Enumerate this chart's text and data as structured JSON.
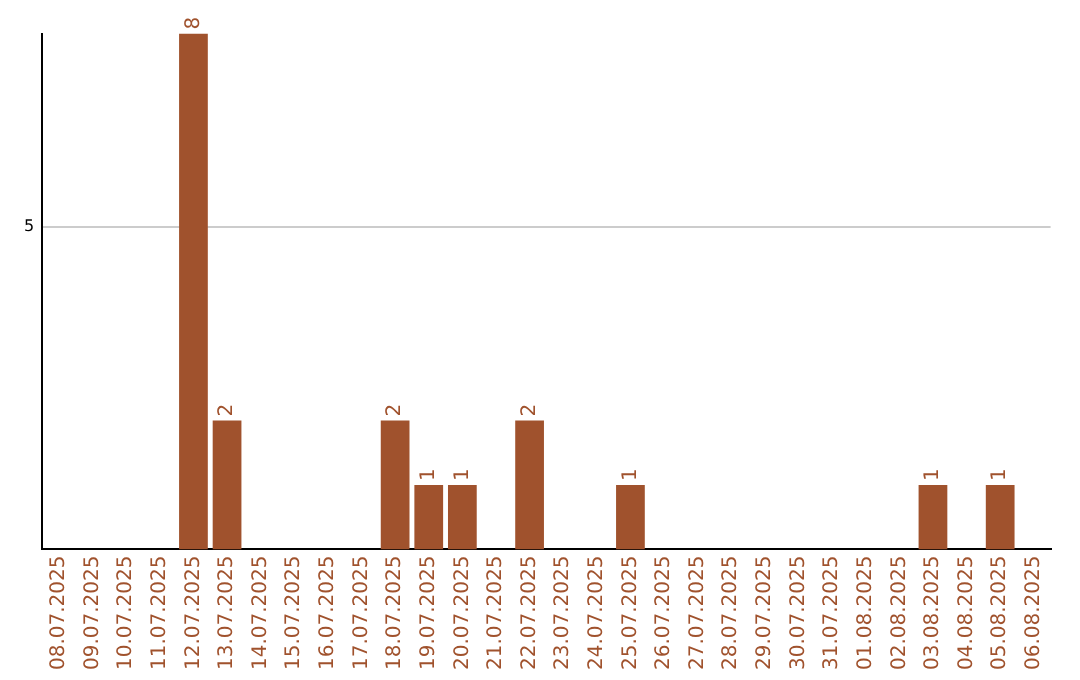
{
  "chart_data": {
    "type": "bar",
    "categories": [
      "08.07.2025",
      "09.07.2025",
      "10.07.2025",
      "11.07.2025",
      "12.07.2025",
      "13.07.2025",
      "14.07.2025",
      "15.07.2025",
      "16.07.2025",
      "17.07.2025",
      "18.07.2025",
      "19.07.2025",
      "20.07.2025",
      "21.07.2025",
      "22.07.2025",
      "23.07.2025",
      "24.07.2025",
      "25.07.2025",
      "26.07.2025",
      "27.07.2025",
      "28.07.2025",
      "29.07.2025",
      "30.07.2025",
      "31.07.2025",
      "01.08.2025",
      "02.08.2025",
      "03.08.2025",
      "04.08.2025",
      "05.08.2025",
      "06.08.2025"
    ],
    "values": [
      0,
      0,
      0,
      0,
      8,
      2,
      0,
      0,
      0,
      0,
      2,
      1,
      1,
      0,
      2,
      0,
      0,
      1,
      0,
      0,
      0,
      0,
      0,
      0,
      0,
      0,
      1,
      0,
      1,
      0
    ],
    "value_labels": [
      null,
      null,
      null,
      null,
      "8",
      "2",
      null,
      null,
      null,
      null,
      "2",
      "1",
      "1",
      null,
      "2",
      null,
      null,
      "1",
      null,
      null,
      null,
      null,
      null,
      null,
      null,
      null,
      "1",
      null,
      "1",
      null
    ],
    "color": "#a0522d",
    "ylim": [
      0,
      8
    ],
    "yticks": [
      5
    ],
    "grid": "y",
    "legend": false
  }
}
